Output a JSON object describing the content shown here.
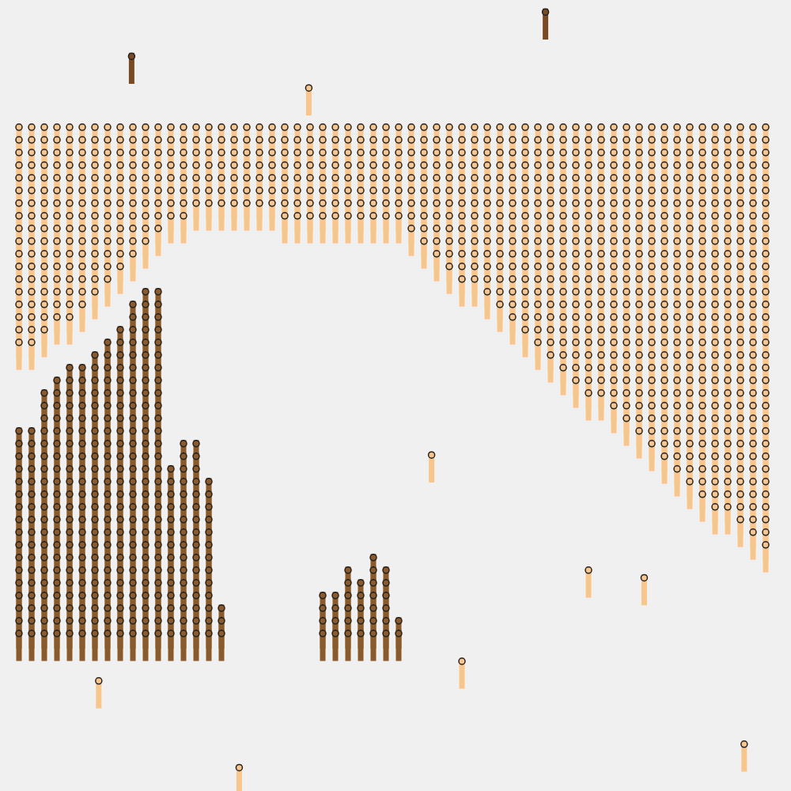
{
  "chart_data": {
    "type": "pictogram",
    "xlim": [
      -1.5,
      61
    ],
    "ylim": [
      -11.5,
      51
    ],
    "tick_labels": false,
    "grid": false,
    "series": [
      {
        "type": "hanging",
        "color": "#f8c68d",
        "base": 40,
        "values": [
          18,
          18,
          17,
          16,
          16,
          15,
          14,
          13,
          12,
          11,
          10,
          9,
          8,
          8,
          7,
          7,
          7,
          7,
          7,
          7,
          7,
          8,
          8,
          8,
          8,
          8,
          8,
          8,
          8,
          8,
          8,
          9,
          10,
          11,
          12,
          13,
          13,
          14,
          15,
          16,
          17,
          18,
          19,
          20,
          21,
          22,
          22,
          23,
          24,
          25,
          26,
          27,
          28,
          29,
          30,
          31,
          31,
          32,
          33,
          34
        ]
      },
      {
        "type": "stacked",
        "color": "#8b5a2b",
        "base": 0,
        "values": [
          17,
          17,
          20,
          21,
          22,
          22,
          23,
          24,
          25,
          27,
          28,
          28,
          14,
          16,
          16,
          13,
          3,
          0,
          0,
          0,
          0,
          0,
          0,
          0,
          4,
          4,
          6,
          5,
          7,
          6,
          2,
          0,
          0,
          0,
          0,
          0,
          0,
          0,
          0,
          0,
          0,
          0,
          0,
          0,
          0,
          0,
          0,
          0,
          0,
          0,
          0,
          0,
          0,
          0,
          0,
          0,
          0,
          0,
          0,
          0
        ]
      },
      {
        "type": "scatter",
        "x": [
          8.9,
          41.6,
          22.9,
          32.6,
          45,
          49.4,
          35,
          6.3,
          17.4,
          57.3
        ],
        "y": [
          45.6,
          49.1,
          43.1,
          14.1,
          5,
          4.4,
          -2.2,
          -3.75,
          -10.6,
          -8.75
        ],
        "colors": [
          "#7a4a25",
          "#7a4a25",
          "#f8c68d",
          "#f8c68d",
          "#f8c68d",
          "#f8c68d",
          "#f8c68d",
          "#f8c68d",
          "#f8c68d",
          "#f8c68d"
        ]
      }
    ]
  }
}
